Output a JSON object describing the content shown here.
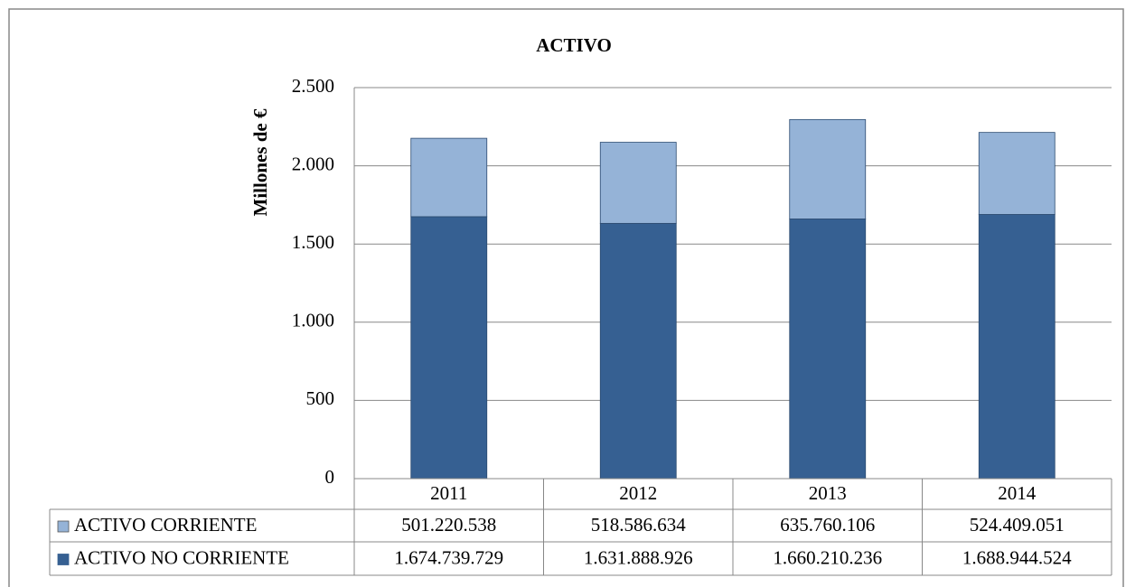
{
  "chart_data": {
    "type": "stacked_bar",
    "title": "ACTIVO",
    "y_label": "Millones  de €",
    "categories": [
      "2011",
      "2012",
      "2013",
      "2014"
    ],
    "series": [
      {
        "name": "ACTIVO CORRIENTE",
        "color": "#95b3d7",
        "values": [
          501.220538,
          518.586634,
          635.760106,
          524.409051
        ],
        "value_labels": [
          "501.220.538",
          "518.586.634",
          "635.760.106",
          "524.409.051"
        ]
      },
      {
        "name": "ACTIVO NO CORRIENTE",
        "color": "#366092",
        "values": [
          1674.739729,
          1631.888926,
          1660.210236,
          1688.944524
        ],
        "value_labels": [
          "1.674.739.729",
          "1.631.888.926",
          "1.660.210.236",
          "1.688.944.524"
        ]
      }
    ],
    "ylim": [
      0,
      2500
    ],
    "yticks": [
      0,
      500,
      {
        "value": 1000,
        "label": "1.000"
      },
      {
        "value": 1500,
        "label": "1.500"
      },
      {
        "value": 2000,
        "label": "2.000"
      },
      {
        "value": 2500,
        "label": "2.500"
      }
    ],
    "grid": true
  }
}
